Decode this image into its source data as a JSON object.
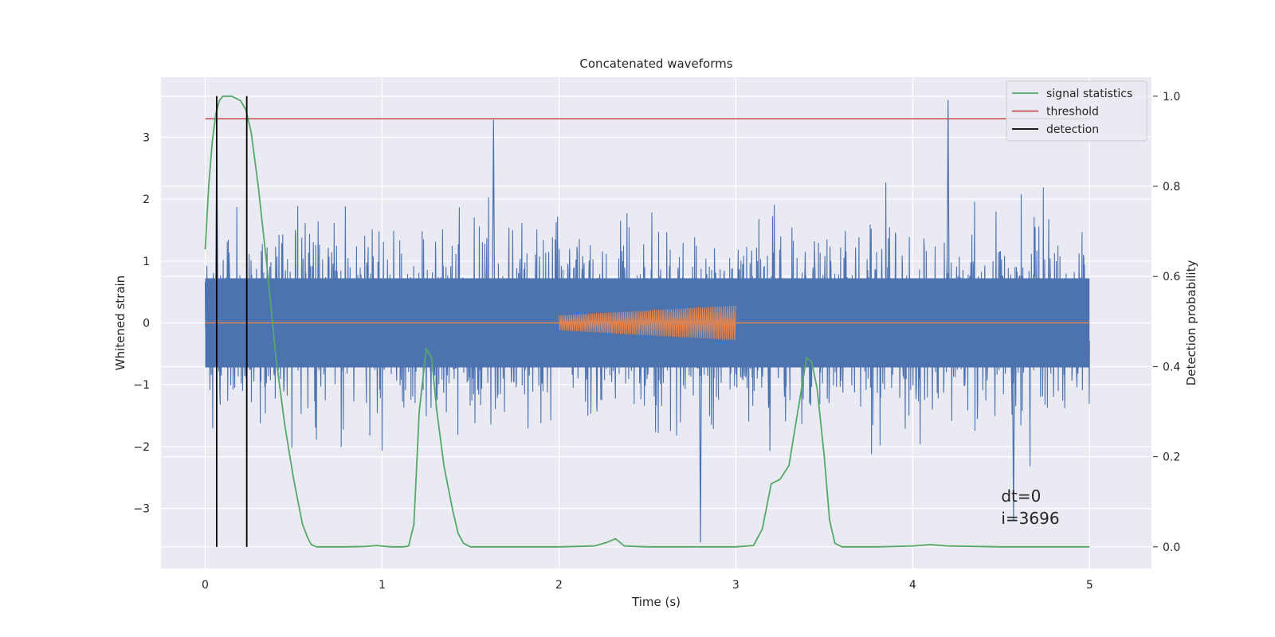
{
  "chart_data": {
    "type": "line",
    "title": "Concatenated waveforms",
    "xlabel": "Time (s)",
    "ylabel": "Whitened strain",
    "y2label": "Detection probability",
    "xlim": [
      -0.25,
      5.35
    ],
    "ylim": [
      -3.97,
      3.97
    ],
    "y2lim": [
      -0.048,
      1.042
    ],
    "xticks": [
      0,
      1,
      2,
      3,
      4,
      5
    ],
    "yticks": [
      -3,
      -2,
      -1,
      0,
      1,
      2,
      3
    ],
    "y2ticks": [
      0.0,
      0.2,
      0.4,
      0.6,
      0.8,
      1.0
    ],
    "xtick_labels": [
      "0",
      "1",
      "2",
      "3",
      "4",
      "5"
    ],
    "ytick_labels": [
      "−3",
      "−2",
      "−1",
      "0",
      "1",
      "2",
      "3"
    ],
    "y2tick_labels": [
      "0.0",
      "0.2",
      "0.4",
      "0.6",
      "0.8",
      "1.0"
    ],
    "grid": true,
    "legend_position": "top-right",
    "colors": {
      "background": "#eaeaf2",
      "grid": "#ffffff",
      "noise": "#4c72b0",
      "injection": "#dd8452",
      "statistics": "#55a868",
      "threshold": "#c44e52",
      "detection": "#000000"
    },
    "series": [
      {
        "name": "",
        "axis": "left",
        "kind": "noise",
        "x_range": [
          0,
          5
        ],
        "core_amplitude": 0.72,
        "spike_max": 3.6,
        "notable_peaks": [
          [
            0.065,
            3.2
          ],
          [
            1.63,
            3.28
          ],
          [
            4.2,
            3.6
          ],
          [
            2.8,
            -3.55
          ],
          [
            4.57,
            -3.2
          ]
        ]
      },
      {
        "name": "",
        "axis": "left",
        "kind": "chirp",
        "baseline_x": [
          0,
          5
        ],
        "x_start": 2.0,
        "x_end": 3.0,
        "amp_start": 0.12,
        "amp_end": 0.28,
        "cycles": 85
      },
      {
        "name": "signal statistics",
        "axis": "right",
        "x": [
          0,
          0.02,
          0.04,
          0.06,
          0.08,
          0.1,
          0.12,
          0.15,
          0.2,
          0.23,
          0.26,
          0.3,
          0.35,
          0.4,
          0.45,
          0.5,
          0.55,
          0.58,
          0.6,
          0.63,
          0.7,
          0.8,
          0.9,
          0.97,
          1.05,
          1.12,
          1.15,
          1.18,
          1.21,
          1.25,
          1.28,
          1.31,
          1.35,
          1.4,
          1.43,
          1.46,
          1.5,
          1.7,
          2.0,
          2.2,
          2.27,
          2.32,
          2.37,
          2.5,
          2.8,
          3.0,
          3.1,
          3.15,
          3.2,
          3.25,
          3.3,
          3.35,
          3.4,
          3.43,
          3.46,
          3.5,
          3.53,
          3.56,
          3.6,
          3.8,
          4.0,
          4.1,
          4.2,
          4.5,
          5.0
        ],
        "values": [
          0.66,
          0.8,
          0.9,
          0.96,
          0.99,
          1.0,
          1.0,
          1.0,
          0.99,
          0.97,
          0.92,
          0.8,
          0.62,
          0.42,
          0.27,
          0.15,
          0.05,
          0.02,
          0.005,
          0.0,
          0.0,
          0.0,
          0.001,
          0.003,
          0.0,
          0.0,
          0.002,
          0.05,
          0.3,
          0.44,
          0.42,
          0.3,
          0.18,
          0.08,
          0.03,
          0.008,
          0.0,
          0.0,
          0.0,
          0.002,
          0.01,
          0.018,
          0.002,
          0.0,
          0.0,
          0.0,
          0.003,
          0.04,
          0.14,
          0.15,
          0.18,
          0.3,
          0.42,
          0.41,
          0.35,
          0.2,
          0.06,
          0.008,
          0.0,
          0.0,
          0.002,
          0.005,
          0.002,
          0.0,
          0.0
        ]
      },
      {
        "name": "threshold",
        "axis": "right",
        "x": [
          0,
          5
        ],
        "values": [
          0.95,
          0.95
        ]
      },
      {
        "name": "detection",
        "axis": "right",
        "x": [
          0.065,
          0.235
        ],
        "values": [
          1.0,
          1.0
        ],
        "style": "vertical-lines"
      }
    ],
    "annotations": [
      "dt=0",
      "i=3696"
    ]
  }
}
